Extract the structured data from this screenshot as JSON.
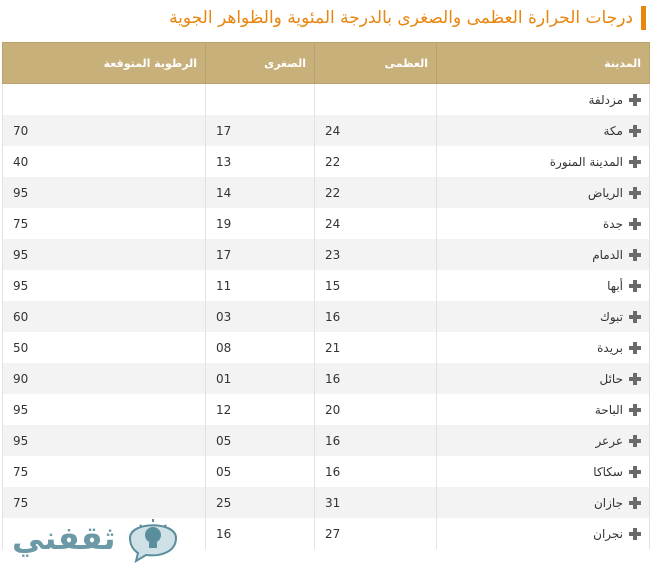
{
  "title": "درجات الحرارة العظمى والصغرى بالدرجة المئوية والظواهر الجوية",
  "colors": {
    "accent": "#e8860e",
    "header_bg": "#c8b07a",
    "zebra": "#f3f3f3"
  },
  "table": {
    "headers": [
      "المدينة",
      "العظمى",
      "الصغرى",
      "الرطوبة المتوقعة"
    ],
    "rows": [
      {
        "city": "مزدلفة",
        "max": "",
        "min": "",
        "humidity": ""
      },
      {
        "city": "مكة",
        "max": "24",
        "min": "17",
        "humidity": "70"
      },
      {
        "city": "المدينة المنورة",
        "max": "22",
        "min": "13",
        "humidity": "40"
      },
      {
        "city": "الرياض",
        "max": "22",
        "min": "14",
        "humidity": "95"
      },
      {
        "city": "جدة",
        "max": "24",
        "min": "19",
        "humidity": "75"
      },
      {
        "city": "الدمام",
        "max": "23",
        "min": "17",
        "humidity": "95"
      },
      {
        "city": "أبها",
        "max": "15",
        "min": "11",
        "humidity": "95"
      },
      {
        "city": "تبوك",
        "max": "16",
        "min": "03",
        "humidity": "60"
      },
      {
        "city": "بريدة",
        "max": "21",
        "min": "08",
        "humidity": "50"
      },
      {
        "city": "حائل",
        "max": "16",
        "min": "01",
        "humidity": "90"
      },
      {
        "city": "الباحة",
        "max": "20",
        "min": "12",
        "humidity": "95"
      },
      {
        "city": "عرعر",
        "max": "16",
        "min": "05",
        "humidity": "95"
      },
      {
        "city": "سكاكا",
        "max": "16",
        "min": "05",
        "humidity": "75"
      },
      {
        "city": "جازان",
        "max": "31",
        "min": "25",
        "humidity": "75"
      },
      {
        "city": "نجران",
        "max": "27",
        "min": "16",
        "humidity": ""
      }
    ]
  },
  "watermark": {
    "text": "ثقفني",
    "icon": "lightbulb-icon"
  }
}
